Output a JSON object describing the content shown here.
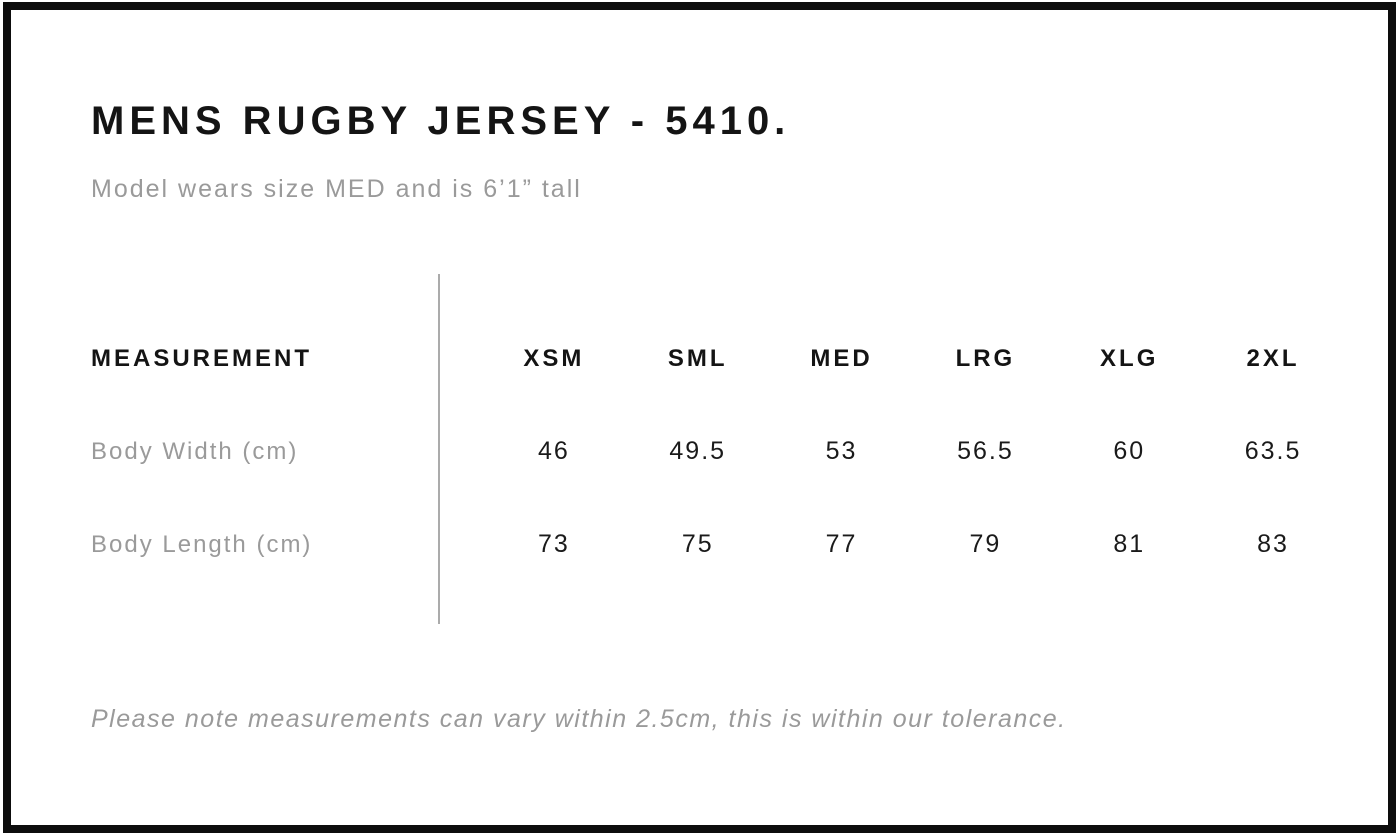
{
  "page": {
    "title": "MENS RUGBY JERSEY - 5410.",
    "subtitle": "Model wears size MED and is 6’1” tall",
    "footnote": "Please note measurements can vary within 2.5cm, this is within our tolerance."
  },
  "size_chart": {
    "measurement_header": "MEASUREMENT",
    "sizes": [
      "XSM",
      "SML",
      "MED",
      "LRG",
      "XLG",
      "2XL"
    ],
    "rows": [
      {
        "label": "Body Width (cm)",
        "values": [
          "46",
          "49.5",
          "53",
          "56.5",
          "60",
          "63.5"
        ]
      },
      {
        "label": "Body Length (cm)",
        "values": [
          "73",
          "75",
          "77",
          "79",
          "81",
          "83"
        ]
      }
    ],
    "tolerance_cm": "2.5"
  },
  "colors": {
    "frame_border": "#0d0d0d",
    "heading_text": "#141414",
    "muted_text": "#9a9a9a",
    "value_text": "#1a1a1a",
    "divider": "#ababab",
    "background": "#ffffff"
  }
}
